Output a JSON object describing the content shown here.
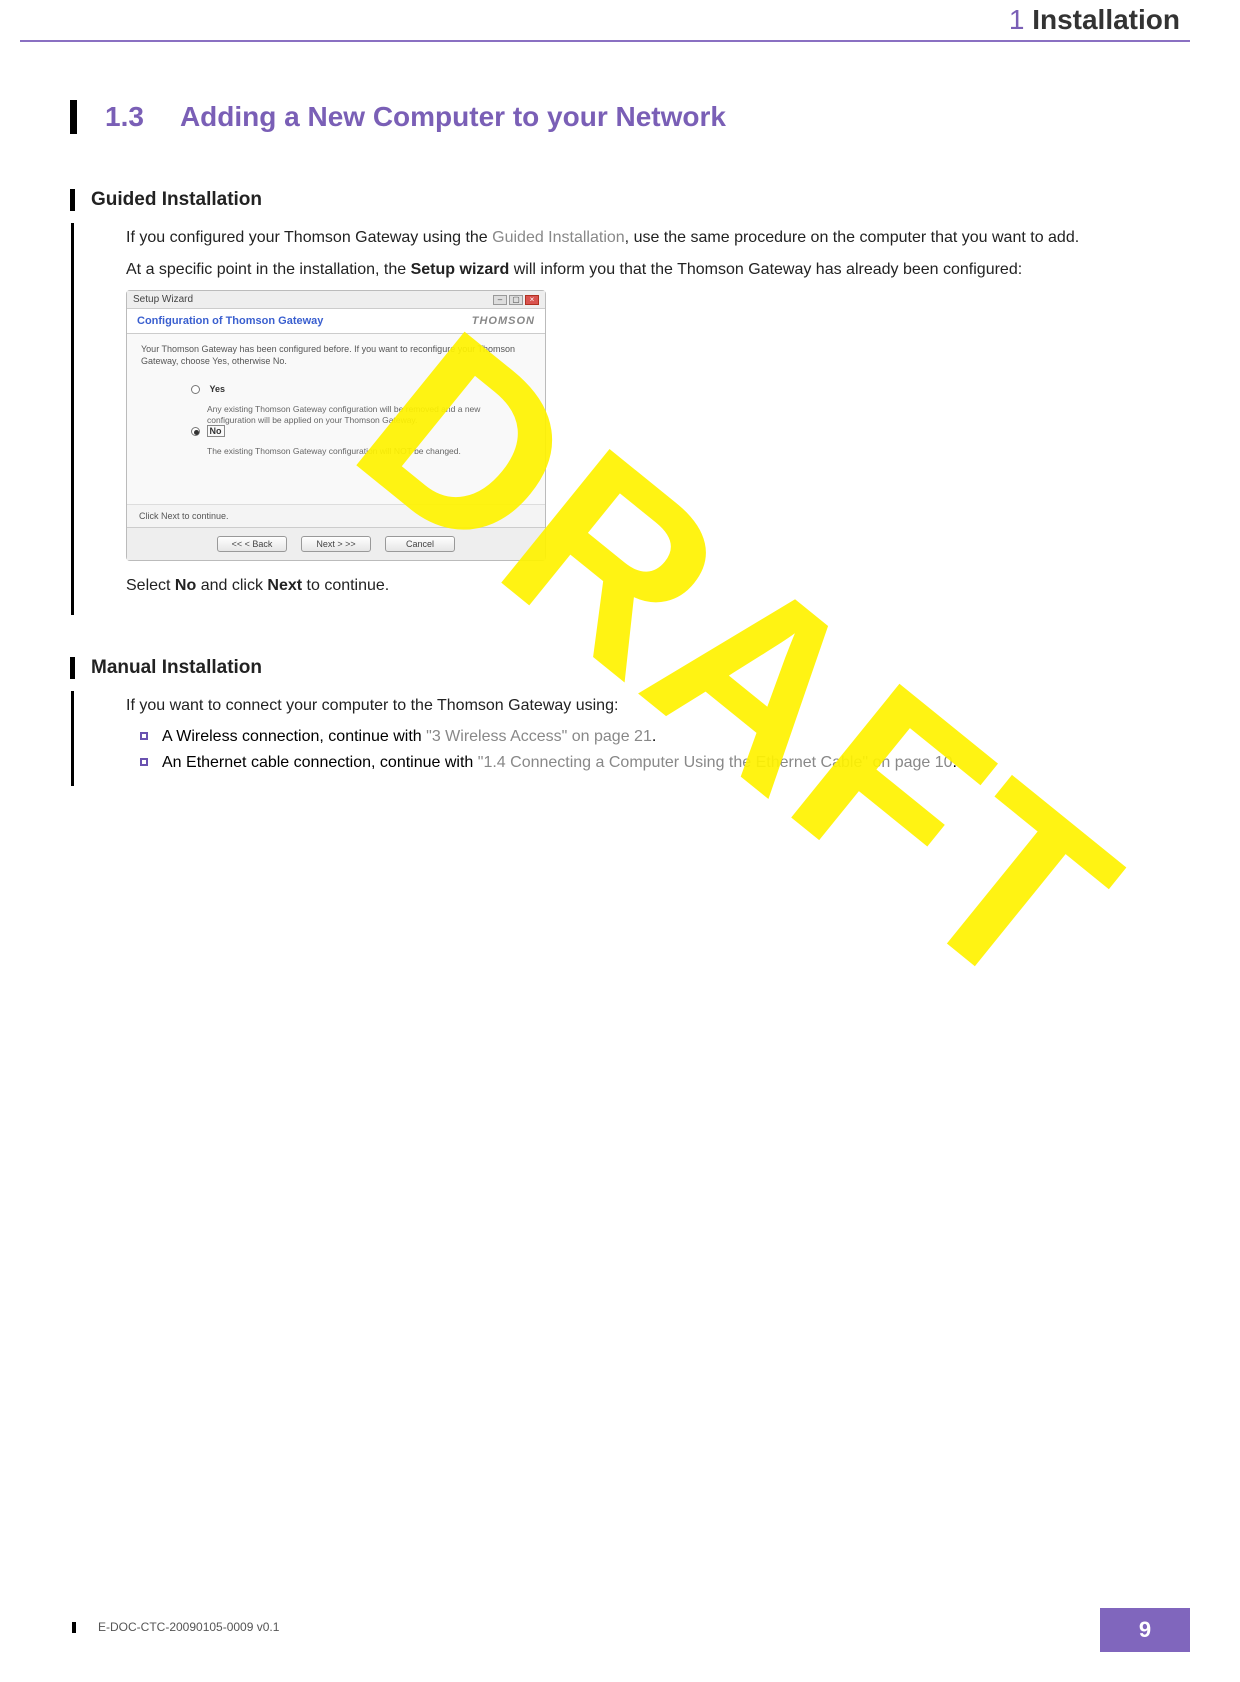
{
  "colors": {
    "accent": "#7a5fb6",
    "accent_fill": "#8066bd",
    "watermark": "#fff300",
    "rule": "#8a70c2",
    "text": "#222222",
    "muted_link": "#888888"
  },
  "chapter": {
    "number": "1",
    "title": "Installation"
  },
  "section": {
    "number": "1.3",
    "title": "Adding a New Computer to your Network"
  },
  "guided": {
    "heading": "Guided Installation",
    "p1_a": "If you configured your Thomson Gateway using the ",
    "p1_link": "Guided Installation",
    "p1_b": ", use the same procedure on the computer that you want to add.",
    "p2_a": "At a specific point in the installation, the ",
    "p2_bold": "Setup wizard",
    "p2_b": " will inform you that the Thomson Gateway has already been configured:",
    "caption_a": "Select ",
    "caption_no": "No",
    "caption_mid": " and click ",
    "caption_next": "Next",
    "caption_b": " to continue."
  },
  "wizard": {
    "window_title": "Setup Wizard",
    "header": "Configuration of Thomson Gateway",
    "brand": "THOMSON",
    "intro": "Your Thomson Gateway has been configured before. If you want to reconfigure your Thomson Gateway, choose Yes, otherwise No.",
    "opt_yes": "Yes",
    "opt_yes_desc": "Any existing Thomson Gateway configuration will be removed and a new configuration will be applied on your Thomson Gateway.",
    "opt_no": "No",
    "opt_no_desc": "The existing Thomson Gateway configuration will NOT be changed.",
    "footer_hint": "Click Next to continue.",
    "btn_back": "<<   < Back",
    "btn_next": "Next >   >>",
    "btn_cancel": "Cancel"
  },
  "manual": {
    "heading": "Manual Installation",
    "intro": "If you want to connect your computer to the Thomson Gateway using:",
    "b1_a": "A Wireless connection, continue with ",
    "b1_link": "\"3 Wireless Access\" on page 21",
    "b1_b": ".",
    "b2_a": "An Ethernet cable connection, continue with ",
    "b2_link": "\"1.4 Connecting a Computer Using the Ethernet Cable\" on page 10",
    "b2_b": "."
  },
  "watermark": "DRAFT",
  "footer": {
    "doc_id": "E-DOC-CTC-20090105-0009 v0.1",
    "page": "9"
  }
}
